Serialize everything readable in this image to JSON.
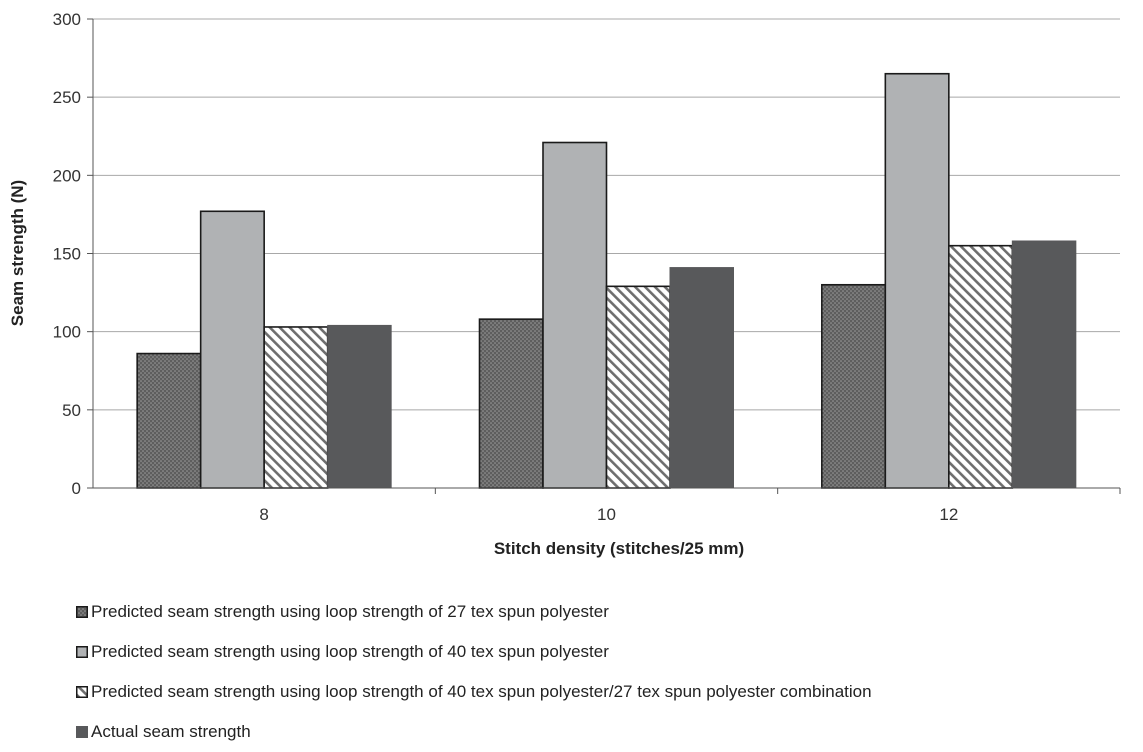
{
  "chart_data": {
    "type": "bar",
    "title": "",
    "xlabel": "Stitch density (stitches/25 mm)",
    "ylabel": "Seam strength (N)",
    "ylim": [
      0,
      300
    ],
    "yticks": [
      0,
      50,
      100,
      150,
      200,
      250,
      300
    ],
    "categories": [
      "8",
      "10",
      "12"
    ],
    "grid": true,
    "legend_position": "bottom",
    "series": [
      {
        "name": "Predicted seam strength using loop strength of 27 tex spun polyester",
        "values": [
          86,
          108,
          130
        ],
        "pattern": "dotted",
        "color": "#6a6a6a"
      },
      {
        "name": "Predicted seam strength using loop strength of 40 tex spun polyester",
        "values": [
          177,
          221,
          265
        ],
        "pattern": "solid",
        "color": "#b0b2b4"
      },
      {
        "name": "Predicted seam strength using loop strength of 40 tex spun polyester/27 tex spun polyester combination",
        "values": [
          103,
          129,
          155
        ],
        "pattern": "hatched",
        "color": "#6e6e6e"
      },
      {
        "name": "Actual seam strength",
        "values": [
          104,
          141,
          158
        ],
        "pattern": "solid",
        "color": "#58595b"
      }
    ]
  }
}
